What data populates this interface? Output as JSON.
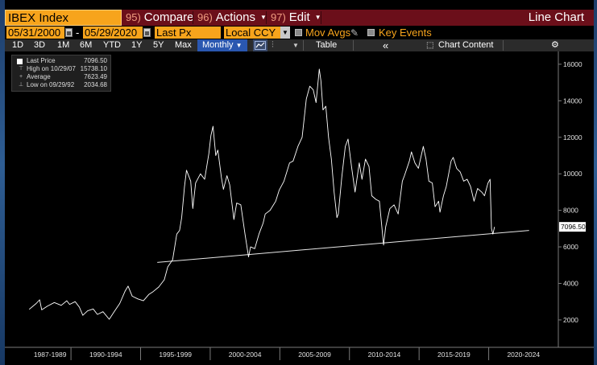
{
  "toolbar": {
    "ticker": "IBEX Index",
    "compare": {
      "num": "95)",
      "label": "Compare"
    },
    "actions": {
      "num": "96)",
      "label": "Actions"
    },
    "edit": {
      "num": "97)",
      "label": "Edit"
    },
    "view_title": "Line Chart"
  },
  "settings": {
    "start_date": "05/31/2000",
    "end_date": "05/29/2020",
    "date_separator": "-",
    "field": "Last Px",
    "currency": "Local CCY",
    "mov_avgs_label": "Mov Avgs",
    "key_events_label": "Key Events"
  },
  "period_bar": {
    "ranges": [
      "1D",
      "3D",
      "1M",
      "6M",
      "YTD",
      "1Y",
      "5Y",
      "Max"
    ],
    "frequency": "Monthly",
    "table_label": "Table",
    "collapse_symbol": "«",
    "chart_content_label": "Chart Content",
    "gear_symbol": "⚙"
  },
  "legend": {
    "last_price": {
      "label": "Last Price",
      "value": "7096.50"
    },
    "high": {
      "label": "High on 10/29/07",
      "value": "15738.10"
    },
    "average": {
      "label": "Average",
      "value": "7623.49"
    },
    "low": {
      "label": "Low on 09/29/92",
      "value": "2034.68"
    }
  },
  "colors": {
    "ticker_bg": "#f7a41c",
    "toolbar_bg": "#6b0f1a",
    "price_line": "#ffffff",
    "period_active": "#2a57b0"
  },
  "chart_data": {
    "type": "line",
    "series": [
      {
        "name": "Last Price",
        "points": [
          [
            1987.0,
            2580
          ],
          [
            1987.5,
            2900
          ],
          [
            1987.75,
            3100
          ],
          [
            1987.9,
            2550
          ],
          [
            1988.3,
            2750
          ],
          [
            1988.8,
            2950
          ],
          [
            1989.3,
            2800
          ],
          [
            1989.7,
            3050
          ],
          [
            1989.9,
            2850
          ],
          [
            1990.3,
            3000
          ],
          [
            1990.6,
            2700
          ],
          [
            1990.85,
            2250
          ],
          [
            1991.2,
            2500
          ],
          [
            1991.6,
            2600
          ],
          [
            1991.9,
            2300
          ],
          [
            1992.3,
            2450
          ],
          [
            1992.75,
            2034.68
          ],
          [
            1993.1,
            2450
          ],
          [
            1993.5,
            2900
          ],
          [
            1993.9,
            3600
          ],
          [
            1994.1,
            3850
          ],
          [
            1994.4,
            3300
          ],
          [
            1994.8,
            3150
          ],
          [
            1995.2,
            3050
          ],
          [
            1995.6,
            3400
          ],
          [
            1995.9,
            3550
          ],
          [
            1996.3,
            3800
          ],
          [
            1996.7,
            4200
          ],
          [
            1996.95,
            4900
          ],
          [
            1997.3,
            5300
          ],
          [
            1997.6,
            6700
          ],
          [
            1997.8,
            6900
          ],
          [
            1997.95,
            7600
          ],
          [
            1998.15,
            9300
          ],
          [
            1998.3,
            10200
          ],
          [
            1998.6,
            9600
          ],
          [
            1998.75,
            8100
          ],
          [
            1998.95,
            9500
          ],
          [
            1999.3,
            10000
          ],
          [
            1999.6,
            9700
          ],
          [
            1999.9,
            11100
          ],
          [
            2000.05,
            12100
          ],
          [
            2000.2,
            12600
          ],
          [
            2000.4,
            11000
          ],
          [
            2000.55,
            11300
          ],
          [
            2000.8,
            9800
          ],
          [
            2000.95,
            9150
          ],
          [
            2001.2,
            9900
          ],
          [
            2001.4,
            9400
          ],
          [
            2001.7,
            7500
          ],
          [
            2001.9,
            8400
          ],
          [
            2002.2,
            8300
          ],
          [
            2002.5,
            6700
          ],
          [
            2002.75,
            5450
          ],
          [
            2002.9,
            6000
          ],
          [
            2003.2,
            5900
          ],
          [
            2003.5,
            6700
          ],
          [
            2003.8,
            7300
          ],
          [
            2003.95,
            7800
          ],
          [
            2004.3,
            8000
          ],
          [
            2004.7,
            8500
          ],
          [
            2004.95,
            9100
          ],
          [
            2005.3,
            9600
          ],
          [
            2005.7,
            10600
          ],
          [
            2005.95,
            10700
          ],
          [
            2006.3,
            11500
          ],
          [
            2006.6,
            12000
          ],
          [
            2006.9,
            14100
          ],
          [
            2007.15,
            14800
          ],
          [
            2007.4,
            14600
          ],
          [
            2007.6,
            13900
          ],
          [
            2007.83,
            15738.1
          ],
          [
            2007.95,
            15100
          ],
          [
            2008.1,
            13500
          ],
          [
            2008.3,
            13700
          ],
          [
            2008.5,
            12000
          ],
          [
            2008.7,
            10800
          ],
          [
            2008.9,
            9000
          ],
          [
            2009.1,
            7600
          ],
          [
            2009.2,
            7800
          ],
          [
            2009.45,
            9800
          ],
          [
            2009.7,
            11500
          ],
          [
            2009.9,
            11900
          ],
          [
            2010.15,
            10400
          ],
          [
            2010.4,
            9000
          ],
          [
            2010.7,
            10600
          ],
          [
            2010.9,
            9700
          ],
          [
            2011.15,
            10800
          ],
          [
            2011.4,
            10400
          ],
          [
            2011.6,
            8800
          ],
          [
            2011.9,
            8600
          ],
          [
            2012.15,
            8500
          ],
          [
            2012.45,
            6100
          ],
          [
            2012.6,
            7100
          ],
          [
            2012.9,
            8100
          ],
          [
            2013.2,
            8300
          ],
          [
            2013.5,
            7800
          ],
          [
            2013.8,
            9600
          ],
          [
            2013.95,
            9900
          ],
          [
            2014.3,
            10700
          ],
          [
            2014.45,
            11200
          ],
          [
            2014.7,
            10600
          ],
          [
            2014.95,
            10300
          ],
          [
            2015.3,
            11500
          ],
          [
            2015.5,
            10800
          ],
          [
            2015.7,
            9600
          ],
          [
            2015.95,
            9500
          ],
          [
            2016.15,
            8200
          ],
          [
            2016.4,
            8500
          ],
          [
            2016.5,
            7900
          ],
          [
            2016.75,
            8800
          ],
          [
            2016.95,
            9300
          ],
          [
            2017.3,
            10700
          ],
          [
            2017.45,
            10900
          ],
          [
            2017.7,
            10300
          ],
          [
            2017.95,
            10100
          ],
          [
            2018.2,
            9600
          ],
          [
            2018.45,
            9700
          ],
          [
            2018.7,
            9300
          ],
          [
            2018.95,
            8500
          ],
          [
            2019.2,
            9200
          ],
          [
            2019.5,
            9000
          ],
          [
            2019.7,
            8800
          ],
          [
            2019.95,
            9500
          ],
          [
            2020.1,
            9700
          ],
          [
            2020.2,
            7000
          ],
          [
            2020.3,
            6700
          ],
          [
            2020.42,
            7096.5
          ]
        ]
      },
      {
        "name": "Support Line",
        "points": [
          [
            1996.2,
            5150
          ],
          [
            2022.9,
            6900
          ]
        ]
      }
    ],
    "x_ticks": [
      "1987-1989",
      "1990-1994",
      "1995-1999",
      "2000-2004",
      "2005-2009",
      "2010-2014",
      "2015-2019",
      "2020-2024"
    ],
    "x_tick_ranges": [
      [
        1987,
        1990
      ],
      [
        1990,
        1995
      ],
      [
        1995,
        2000
      ],
      [
        2000,
        2005
      ],
      [
        2005,
        2010
      ],
      [
        2010,
        2015
      ],
      [
        2015,
        2020
      ],
      [
        2020,
        2025
      ]
    ],
    "xlim": [
      1985.25,
      2025
    ],
    "ylim": [
      500,
      16700
    ],
    "y_ticks": [
      2000,
      4000,
      6000,
      8000,
      10000,
      12000,
      14000,
      16000
    ],
    "last_price_label": "7096.50",
    "last_price_value": 7096.5
  }
}
